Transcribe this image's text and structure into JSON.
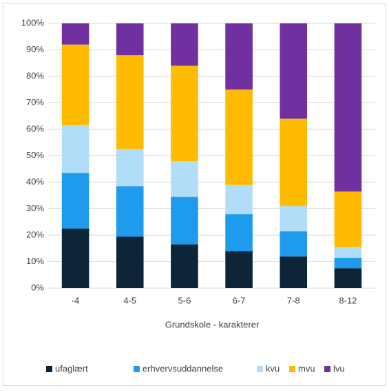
{
  "chart_data": {
    "type": "stacked_bar",
    "x_label": "Grundskole - karakterer",
    "categories": [
      "-4",
      "4-5",
      "5-6",
      "6-7",
      "7-8",
      "8-12"
    ],
    "series": [
      {
        "name": "ufaglært",
        "color": "#0c2539",
        "values": [
          22.5,
          19.5,
          16.5,
          14,
          12,
          7.5
        ]
      },
      {
        "name": "erhvervsuddannelse",
        "color": "#1f9bee",
        "values": [
          21,
          19,
          18,
          14,
          9.5,
          4
        ]
      },
      {
        "name": "kvu",
        "color": "#b2ddf8",
        "values": [
          18,
          14,
          13.5,
          11,
          9.5,
          4
        ]
      },
      {
        "name": "mvu",
        "color": "#ffbb00",
        "values": [
          30.5,
          35.5,
          36,
          36,
          33,
          21
        ]
      },
      {
        "name": "lvu",
        "color": "#7030a0",
        "values": [
          8,
          12,
          16,
          25,
          36,
          63.5
        ]
      }
    ],
    "ylim": [
      0,
      100
    ],
    "yticks": [
      {
        "value": 0,
        "label": "0%"
      },
      {
        "value": 10,
        "label": "10%"
      },
      {
        "value": 20,
        "label": "20%"
      },
      {
        "value": 30,
        "label": "30%"
      },
      {
        "value": 40,
        "label": "40%"
      },
      {
        "value": 50,
        "label": "50%"
      },
      {
        "value": 60,
        "label": "60%"
      },
      {
        "value": 70,
        "label": "70%"
      },
      {
        "value": 80,
        "label": "80%"
      },
      {
        "value": 90,
        "label": "90%"
      },
      {
        "value": 100,
        "label": "100%"
      }
    ],
    "grid": true,
    "legend": "bottom"
  }
}
